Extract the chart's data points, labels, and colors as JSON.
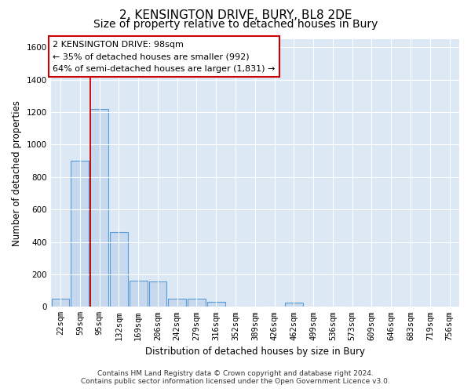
{
  "title": "2, KENSINGTON DRIVE, BURY, BL8 2DE",
  "subtitle": "Size of property relative to detached houses in Bury",
  "xlabel": "Distribution of detached houses by size in Bury",
  "ylabel": "Number of detached properties",
  "footer_line1": "Contains HM Land Registry data © Crown copyright and database right 2024.",
  "footer_line2": "Contains public sector information licensed under the Open Government Licence v3.0.",
  "annotation_title": "2 KENSINGTON DRIVE: 98sqm",
  "annotation_line1": "← 35% of detached houses are smaller (992)",
  "annotation_line2": "64% of semi-detached houses are larger (1,831) →",
  "bar_categories": [
    "22sqm",
    "59sqm",
    "95sqm",
    "132sqm",
    "169sqm",
    "206sqm",
    "242sqm",
    "279sqm",
    "316sqm",
    "352sqm",
    "389sqm",
    "426sqm",
    "462sqm",
    "499sqm",
    "536sqm",
    "573sqm",
    "609sqm",
    "646sqm",
    "683sqm",
    "719sqm",
    "756sqm"
  ],
  "bar_values": [
    50,
    900,
    1220,
    460,
    160,
    155,
    50,
    50,
    30,
    0,
    0,
    0,
    25,
    0,
    0,
    0,
    0,
    0,
    0,
    0,
    0
  ],
  "bar_color": "#c5d8ed",
  "bar_edge_color": "#5b9bd5",
  "vline_color": "#cc0000",
  "vline_x_index": 2,
  "annotation_box_edge_color": "#cc0000",
  "background_color": "#dce9f5",
  "fig_background_color": "#ffffff",
  "ylim": [
    0,
    1650
  ],
  "yticks": [
    0,
    200,
    400,
    600,
    800,
    1000,
    1200,
    1400,
    1600
  ],
  "grid_color": "#ffffff",
  "title_fontsize": 11,
  "subtitle_fontsize": 10,
  "axis_label_fontsize": 8.5,
  "tick_fontsize": 7.5,
  "annotation_fontsize": 8,
  "footer_fontsize": 6.5
}
